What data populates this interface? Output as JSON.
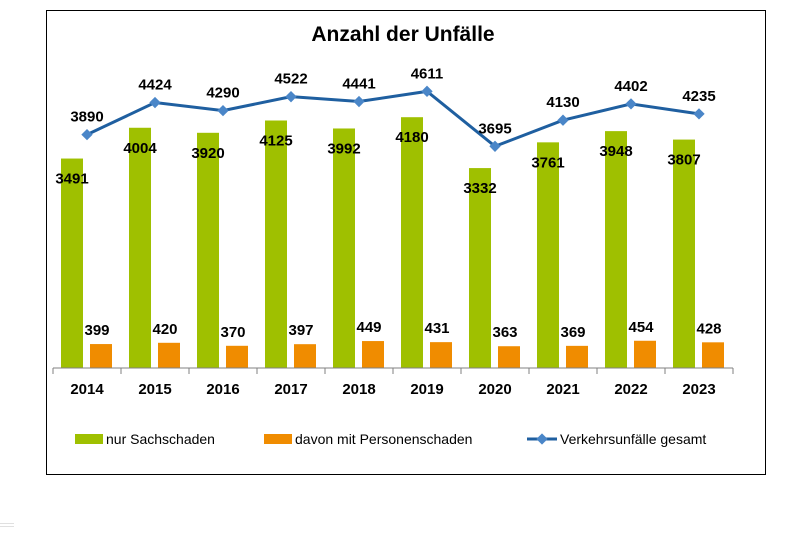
{
  "chart_data": {
    "type": "bar",
    "title": "Anzahl der Unfälle",
    "categories": [
      "2014",
      "2015",
      "2016",
      "2017",
      "2018",
      "2019",
      "2020",
      "2021",
      "2022",
      "2023"
    ],
    "series": [
      {
        "name": "nur Sachschaden",
        "type": "bar",
        "color": "#9fc000",
        "values": [
          3491,
          4004,
          3920,
          4125,
          3992,
          4180,
          3332,
          3761,
          3948,
          3807
        ]
      },
      {
        "name": "davon mit Personenschaden",
        "type": "bar",
        "color": "#f08c00",
        "values": [
          399,
          420,
          370,
          397,
          449,
          431,
          363,
          369,
          454,
          428
        ]
      },
      {
        "name": "Verkehrsunfälle gesamt",
        "type": "line",
        "color": "#1f5fa0",
        "values": [
          3890,
          4424,
          4290,
          4522,
          4441,
          4611,
          3695,
          4130,
          4402,
          4235
        ]
      }
    ],
    "ylim": [
      0,
      5000
    ],
    "grid": false,
    "legend_position": "bottom"
  }
}
